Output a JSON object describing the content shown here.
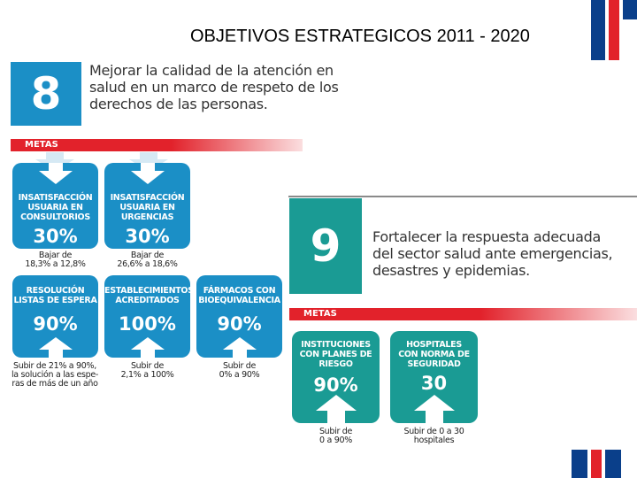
{
  "header": {
    "title": "OBJETIVOS ESTRATEGICOS 2011 - 2020"
  },
  "objective8": {
    "number": "8",
    "text": "Mejorar la calidad de la atención en\nsalud en un marco de respeto de los\nderechos de las personas.",
    "metas_label": "METAS",
    "cards": [
      {
        "label": "INSATISFACCIÓN\nUSUARIA EN\nCONSULTORIOS",
        "value": "30%",
        "caption": "Bajar de\n18,3% a 12,8%"
      },
      {
        "label": "INSATISFACCIÓN\nUSUARIA EN\nURGENCIAS",
        "value": "30%",
        "caption": "Bajar de\n26,6% a 18,6%"
      },
      {
        "label": "RESOLUCIÓN\nLISTAS DE ESPERA",
        "value": "90%",
        "caption": "Subir de 21% a 90%,\nla solución a las espe-\nras de más de un año"
      },
      {
        "label": "ESTABLECIMIENTOS\nACREDITADOS",
        "value": "100%",
        "caption": "Subir de\n2,1% a 100%"
      },
      {
        "label": "FÁRMACOS CON\nBIOEQUIVALENCIA",
        "value": "90%",
        "caption": "Subir de\n0% a 90%"
      }
    ]
  },
  "objective9": {
    "number": "9",
    "text": "Fortalecer la respuesta adecuada\ndel sector salud ante emergencias,\ndesastres y epidemias.",
    "metas_label": "METAS",
    "cards": [
      {
        "label": "INSTITUCIONES\nCON PLANES DE\nRIESGO",
        "value": "90%",
        "caption": "Subir de\n0 a 90%"
      },
      {
        "label": "HOSPITALES\nCON NORMA DE\nSEGURIDAD",
        "value": "30",
        "caption": "Subir de 0 a 30\nhospitales"
      }
    ]
  },
  "colors": {
    "blue": "#1b8fc6",
    "teal": "#1a9b94",
    "red": "#e2222b",
    "navy": "#0a3f8a"
  }
}
